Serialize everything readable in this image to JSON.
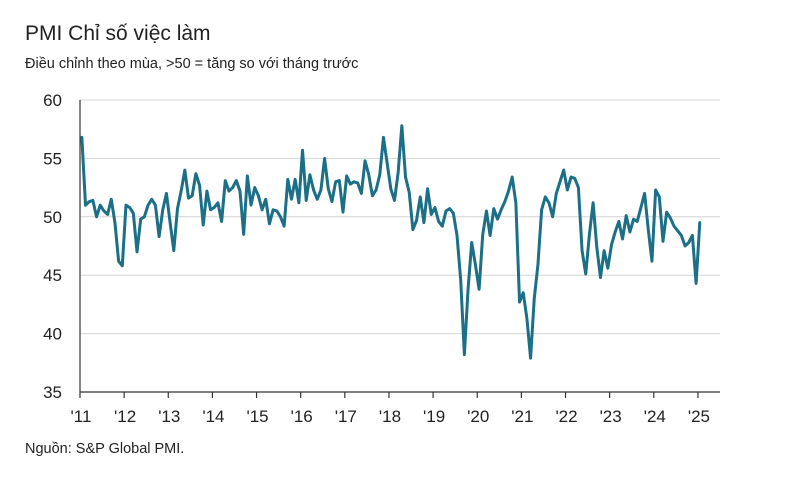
{
  "title": "PMI Chỉ số việc làm",
  "subtitle": "Điều chỉnh theo mùa, >50 = tăng so với tháng trước",
  "source": "Nguồn: S&P Global PMI.",
  "colors": {
    "line": "#1b6f86",
    "grid": "#d4d4d4",
    "axis": "#333333"
  },
  "chart_data": {
    "type": "line",
    "title": "PMI Chỉ số việc làm",
    "subtitle": "Điều chỉnh theo mùa, >50 = tăng so với tháng trước",
    "ylim": [
      35,
      60
    ],
    "yticks": [
      35,
      40,
      45,
      50,
      55,
      60
    ],
    "xlim": [
      2011.0,
      2025.5
    ],
    "xticks": [
      {
        "year": 2011,
        "label": "'11"
      },
      {
        "year": 2012,
        "label": "'12"
      },
      {
        "year": 2013,
        "label": "'13"
      },
      {
        "year": 2014,
        "label": "'14"
      },
      {
        "year": 2015,
        "label": "'15"
      },
      {
        "year": 2016,
        "label": "'16"
      },
      {
        "year": 2017,
        "label": "'17"
      },
      {
        "year": 2018,
        "label": "'18"
      },
      {
        "year": 2019,
        "label": "'19"
      },
      {
        "year": 2020,
        "label": "'20"
      },
      {
        "year": 2021,
        "label": "'21"
      },
      {
        "year": 2022,
        "label": "'22"
      },
      {
        "year": 2023,
        "label": "'23"
      },
      {
        "year": 2024,
        "label": "'24"
      },
      {
        "year": 2025,
        "label": "'25"
      }
    ],
    "grid": true,
    "series": [
      {
        "start": "2011-01",
        "frequency": "monthly",
        "values": [
          56.8,
          51.0,
          51.3,
          51.4,
          50.0,
          51.0,
          50.5,
          50.2,
          51.5,
          49.5,
          46.2,
          45.8,
          51.0,
          50.8,
          50.3,
          47.0,
          49.8,
          50.0,
          51.0,
          51.5,
          51.0,
          48.3,
          50.6,
          52.0,
          49.5,
          47.1,
          50.7,
          52.2,
          54.0,
          51.6,
          51.8,
          53.7,
          52.7,
          49.3,
          52.2,
          50.6,
          50.8,
          51.2,
          49.6,
          53.1,
          52.2,
          52.5,
          53.1,
          52.2,
          48.5,
          53.5,
          51.0,
          52.5,
          51.8,
          50.6,
          51.5,
          49.4,
          50.6,
          50.5,
          50.0,
          49.2,
          53.2,
          51.5,
          53.2,
          51.2,
          55.7,
          51.4,
          53.6,
          52.3,
          51.5,
          52.3,
          55.0,
          52.4,
          51.3,
          53.0,
          53.1,
          50.4,
          53.5,
          52.8,
          53.0,
          52.9,
          52.0,
          54.8,
          53.6,
          51.8,
          52.3,
          53.6,
          56.8,
          54.6,
          52.4,
          51.4,
          53.8,
          57.8,
          53.4,
          52.1,
          48.9,
          49.7,
          51.7,
          49.5,
          52.4,
          50.2,
          50.8,
          49.6,
          49.2,
          50.5,
          50.7,
          50.3,
          48.4,
          44.6,
          38.2,
          43.8,
          47.8,
          45.9,
          43.8,
          48.5,
          50.5,
          48.4,
          50.7,
          49.8,
          50.6,
          51.3,
          52.2,
          53.4,
          51.2,
          42.7,
          43.5,
          41.3,
          37.9,
          43.0,
          45.9,
          50.6,
          51.7,
          51.2,
          50.0,
          52.0,
          53.0,
          54.0,
          52.3,
          53.4,
          53.3,
          52.5,
          47.1,
          45.1,
          48.5,
          51.2,
          47.4,
          44.8,
          47.1,
          45.6,
          47.6,
          48.7,
          49.6,
          48.1,
          50.1,
          48.7,
          49.8,
          49.6,
          50.8,
          52.0,
          48.9,
          46.2,
          52.3,
          51.7,
          47.9,
          50.4,
          49.9,
          49.2,
          48.8,
          48.4,
          47.5,
          47.8,
          48.4,
          44.3,
          49.5
        ]
      }
    ]
  }
}
